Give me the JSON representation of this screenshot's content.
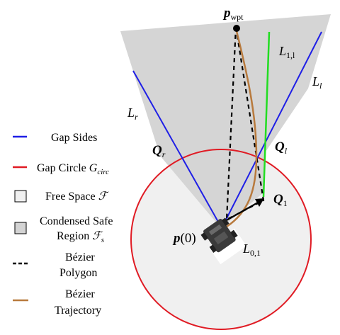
{
  "colors": {
    "gap_sides": "#1f1fe6",
    "gap_circle": "#e01b24",
    "free_space_fill": "#f0f0f0",
    "safe_region_fill": "#d3d3d3",
    "bezier_polygon": "#000000",
    "bezier_trajectory": "#b87a3d",
    "green_segment": "#22dd22",
    "robot_body": "#3a3a3a"
  },
  "labels": {
    "p_wpt": {
      "main": "p",
      "sub": "wpt"
    },
    "L_11": {
      "main": "L",
      "sub": "1,l"
    },
    "L_l": {
      "main": "L",
      "sub": "l"
    },
    "L_r": {
      "main": "L",
      "sub": "r"
    },
    "Q_r": {
      "main": "Q",
      "sub": "r"
    },
    "Q_l": {
      "main": "Q",
      "sub": "l"
    },
    "Q_1": {
      "main": "Q",
      "sub": "1"
    },
    "p0": {
      "main": "p",
      "arg": "(0)"
    },
    "L_01": {
      "main": "L",
      "sub": "0,1"
    }
  },
  "legend": {
    "gap_sides": "Gap Sides",
    "gap_circle": {
      "text": "Gap Circle ",
      "sym": "G",
      "sub": "circ"
    },
    "free_space": {
      "text": "Free Space ",
      "sym": "ℱ"
    },
    "safe_region_line1": "Condensed Safe",
    "safe_region_line2": {
      "text": "Region ",
      "sym": "ℱ",
      "sub": "s"
    },
    "bezier_polygon_line1": "Bézier",
    "bezier_polygon_line2": "Polygon",
    "bezier_trajectory_line1": "Bézier",
    "bezier_trajectory_line2": "Trajectory"
  }
}
